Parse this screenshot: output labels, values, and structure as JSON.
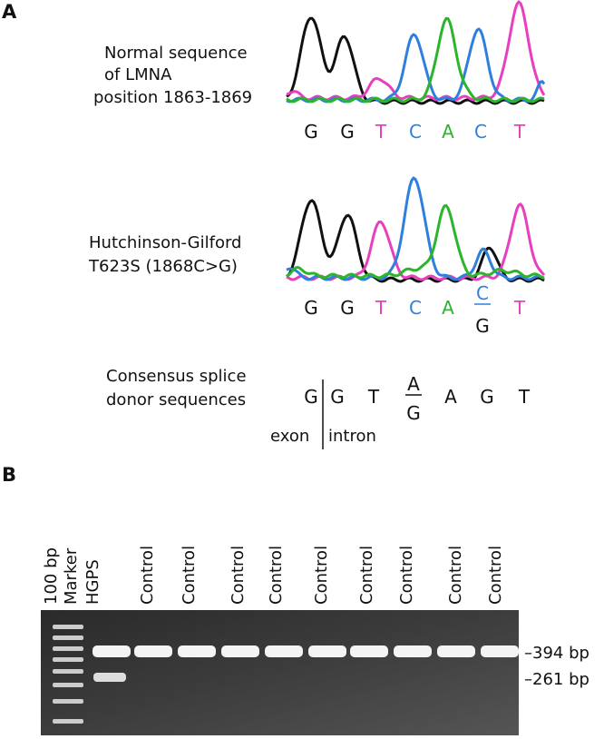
{
  "panel_a": {
    "label": "A",
    "normal": {
      "caption": [
        "Normal sequence",
        "of LMNA",
        "position 1863-1869"
      ],
      "bases": [
        "G",
        "G",
        "T",
        "C",
        "A",
        "C",
        "T"
      ]
    },
    "mutant": {
      "caption": [
        "Hutchinson-Gilford",
        "T623S (1868C>G)"
      ],
      "bases": [
        "G",
        "G",
        "T",
        "C",
        "A",
        {
          "top": "C",
          "bottom": "G"
        },
        "T"
      ]
    },
    "consensus": {
      "caption": [
        "Consensus splice",
        "donor sequences"
      ],
      "bases": [
        "G",
        "G",
        "T",
        {
          "top": "A",
          "bottom": "G"
        },
        "A",
        "G",
        "T"
      ],
      "exon": "exon",
      "intron": "intron"
    }
  },
  "panel_b": {
    "label": "B",
    "lanes": [
      "100 bp",
      "Marker",
      "HGPS",
      "Control",
      "Control",
      "Control",
      "Control",
      "Control",
      "Control",
      "Control",
      "Control",
      "Control"
    ],
    "bands": [
      "–394 bp",
      "–261 bp"
    ]
  }
}
